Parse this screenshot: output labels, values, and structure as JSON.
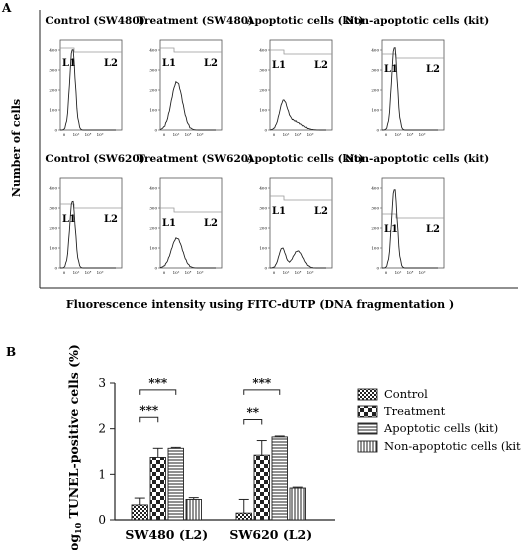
{
  "panel_a": {
    "label": "A",
    "y_label": "Number of cells",
    "x_label": "Fluorescence intensity using FITC-dUTP (DNA fragmentation )",
    "region_labels": [
      "L1",
      "L2"
    ],
    "plots": [
      {
        "title": "Control (SW480)",
        "y_ticks": [
          "400",
          "300",
          "200",
          "100",
          "0"
        ],
        "x_ticks": [
          "0",
          "10²",
          "10⁴",
          "10⁶"
        ],
        "peak_shape": "narrow",
        "peak_count": 410,
        "gate_y": 410
      },
      {
        "title": "Treatment (SW480)",
        "y_ticks": [
          "400",
          "300",
          "200",
          "100",
          "0"
        ],
        "x_ticks": [
          "0",
          "10²",
          "10⁴",
          "10⁶"
        ],
        "peak_shape": "broad",
        "peak_count": 240,
        "gate_y": 410
      },
      {
        "title": "Apoptotic cells (kit)",
        "y_ticks": [
          "400",
          "300",
          "200",
          "100",
          "0"
        ],
        "x_ticks": [
          "0",
          "10²",
          "10⁴",
          "10⁶"
        ],
        "peak_shape": "flat",
        "peak_count": 130,
        "gate_y": 400
      },
      {
        "title": "Non-apoptotic cells (kit)",
        "y_ticks": [
          "400",
          "300",
          "200",
          "100",
          "0"
        ],
        "x_ticks": [
          "0",
          "10²",
          "10⁴",
          "10⁶"
        ],
        "peak_shape": "narrow",
        "peak_count": 420,
        "gate_y": 380
      },
      {
        "title": "Control (SW620)",
        "y_ticks": [
          "400",
          "300",
          "200",
          "100",
          "0"
        ],
        "x_ticks": [
          "0",
          "10²",
          "10⁴",
          "10⁶"
        ],
        "peak_shape": "narrow",
        "peak_count": 340,
        "gate_y": 320
      },
      {
        "title": "Treatment (SW620)",
        "y_ticks": [
          "400",
          "300",
          "200",
          "100",
          "0"
        ],
        "x_ticks": [
          "0",
          "10²",
          "10⁴",
          "10⁶"
        ],
        "peak_shape": "broad",
        "peak_count": 150,
        "gate_y": 300
      },
      {
        "title": "Apoptotic cells (kit)",
        "y_ticks": [
          "400",
          "300",
          "200",
          "100",
          "0"
        ],
        "x_ticks": [
          "0",
          "10²",
          "10⁴",
          "10⁶"
        ],
        "peak_shape": "bimodal",
        "peak_count": 100,
        "gate_y": 360
      },
      {
        "title": "Non-apoptotic cells (kit)",
        "y_ticks": [
          "400",
          "300",
          "200",
          "100",
          "0"
        ],
        "x_ticks": [
          "0",
          "10²",
          "10⁴",
          "10⁶"
        ],
        "peak_shape": "narrow",
        "peak_count": 400,
        "gate_y": 270
      }
    ]
  },
  "chart_data": {
    "type": "bar",
    "panel_label": "B",
    "title": "",
    "ylabel_main": "Log",
    "ylabel_sub": "10",
    "ylabel_rest": " TUNEL-positive cells (%)",
    "xlabel": "",
    "ylim": [
      0,
      3
    ],
    "y_ticks": [
      "0",
      "1",
      "2",
      "3"
    ],
    "categories": [
      "SW480 (L2)",
      "SW620 (L2)"
    ],
    "series": [
      {
        "name": "Control",
        "pattern": "checker-fine",
        "values": [
          0.33,
          0.15
        ],
        "errors": [
          0.15,
          0.3
        ]
      },
      {
        "name": "Treatment",
        "pattern": "checker-coarse",
        "values": [
          1.37,
          1.42
        ],
        "errors": [
          0.2,
          0.32
        ]
      },
      {
        "name": "Apoptotic cells (kit)",
        "pattern": "horizontal-lines",
        "values": [
          1.57,
          1.82
        ],
        "errors": [
          0.02,
          0.02
        ]
      },
      {
        "name": "Non-apoptotic cells (kit)",
        "pattern": "vertical-lines",
        "values": [
          0.45,
          0.7
        ],
        "errors": [
          0.04,
          0.02
        ]
      }
    ],
    "significance": [
      {
        "category": 0,
        "from": 0,
        "to": 1,
        "label": "***"
      },
      {
        "category": 0,
        "from": 0,
        "to": 2,
        "label": "***"
      },
      {
        "category": 1,
        "from": 0,
        "to": 1,
        "label": "**"
      },
      {
        "category": 1,
        "from": 0,
        "to": 2,
        "label": "***"
      }
    ],
    "legend_position": "right"
  }
}
